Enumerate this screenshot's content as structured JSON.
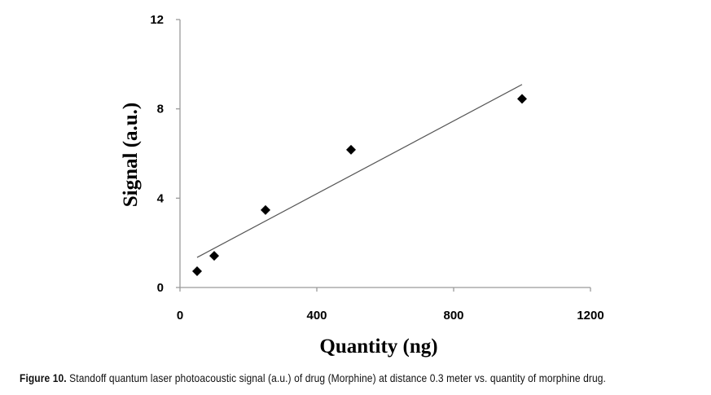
{
  "chart_data": {
    "type": "scatter",
    "title": "",
    "xlabel": "Quantity (ng)",
    "ylabel": "Signal (a.u.)",
    "xlim": [
      0,
      1200
    ],
    "ylim": [
      0,
      12
    ],
    "xticks": [
      "0",
      "400",
      "800",
      "1200"
    ],
    "yticks": [
      "0",
      "4",
      "8",
      "12"
    ],
    "xtick_values": [
      0,
      400,
      800,
      1200
    ],
    "ytick_values": [
      0,
      4,
      8,
      12
    ],
    "grid": false,
    "series": [
      {
        "name": "Morphine",
        "marker": "diamond",
        "color": "#000000",
        "x": [
          50,
          100,
          250,
          500,
          1000
        ],
        "y": [
          0.73,
          1.42,
          3.47,
          6.17,
          8.45
        ]
      }
    ],
    "trendline": {
      "type": "linear",
      "slope": 0.00815,
      "intercept": 0.94,
      "x_range": [
        50,
        1000
      ],
      "color": "#555555"
    }
  },
  "caption": {
    "label": "Figure 10.",
    "text": " Standoff quantum laser photoacoustic signal (a.u.) of drug (Morphine) at distance 0.3 meter vs. quantity of morphine drug."
  }
}
